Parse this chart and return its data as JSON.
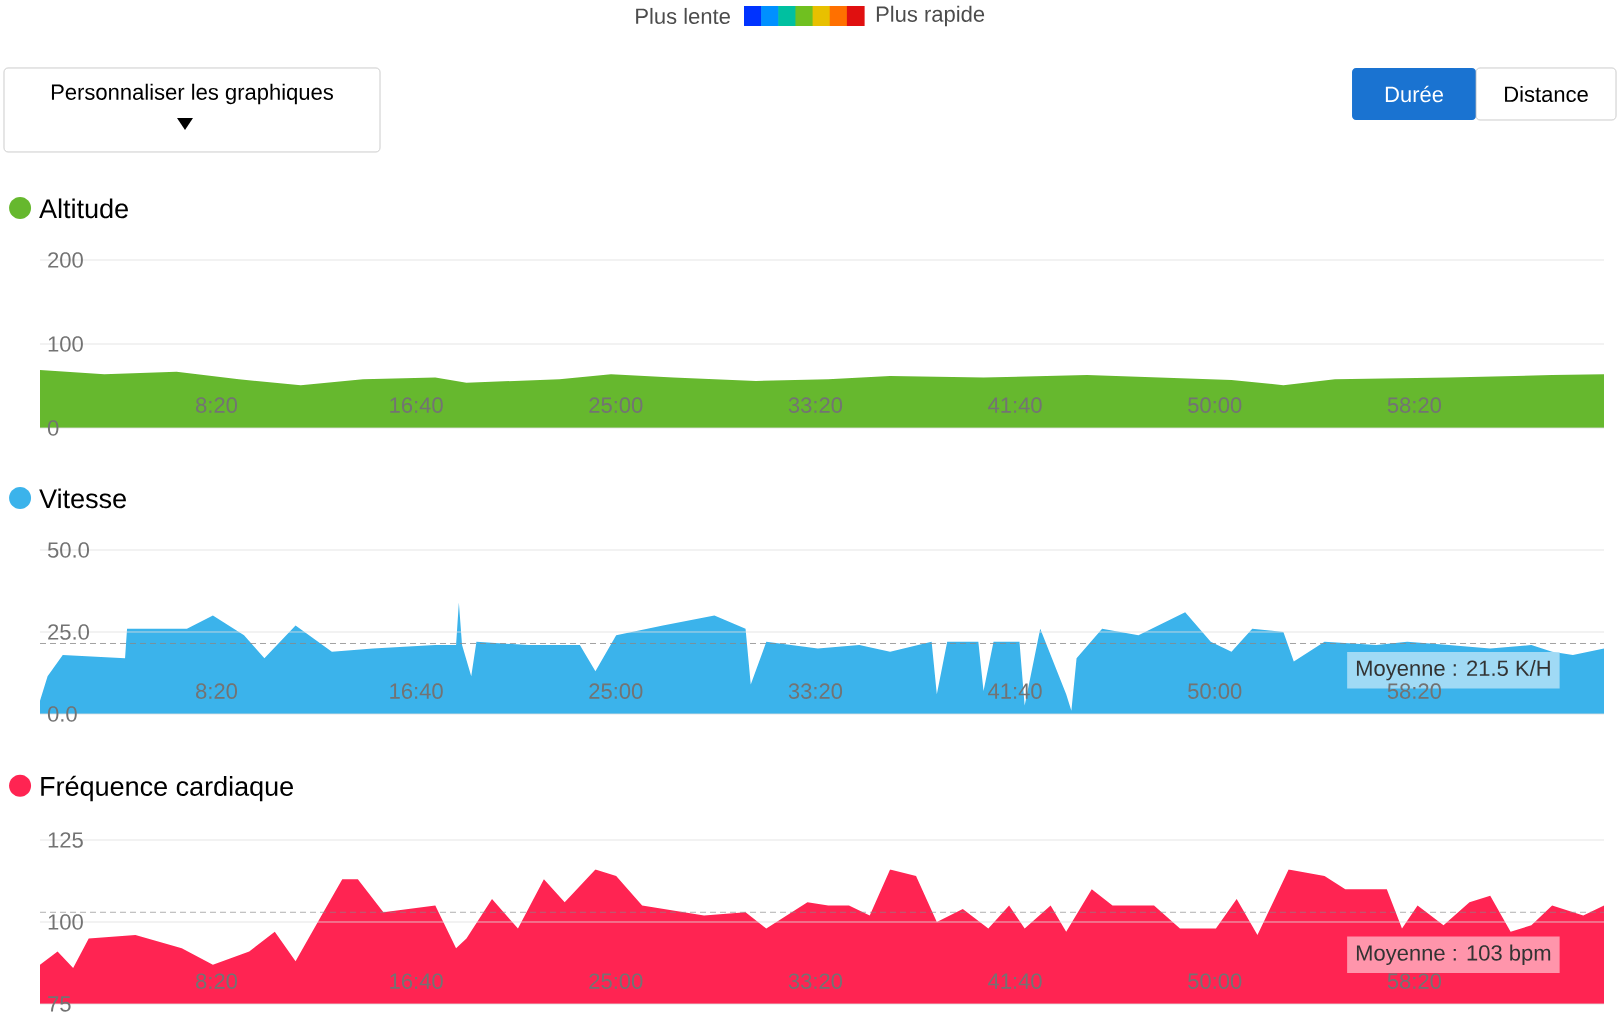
{
  "chart_data": [
    {
      "type": "area",
      "title": "Altitude",
      "annotations": [
        "Plus lente",
        "Plus rapide",
        "Personnaliser les graphiques",
        "Durée",
        "Distance"
      ],
      "x": [
        58,
        219,
        400,
        556,
        711,
        867,
        1048,
        1126,
        1359,
        1488,
        1644,
        1851,
        2032,
        2187,
        2421,
        2680,
        2861,
        3042,
        3172,
        3301,
        3586,
        3845,
        3975
      ],
      "xlim": [
        58,
        3975
      ],
      "xticks": [
        {
          "value": 500,
          "label": "8:20"
        },
        {
          "value": 1000,
          "label": "16:40"
        },
        {
          "value": 1500,
          "label": "25:00"
        },
        {
          "value": 2000,
          "label": "33:20"
        },
        {
          "value": 2500,
          "label": "41:40"
        },
        {
          "value": 3000,
          "label": "50:00"
        },
        {
          "value": 3500,
          "label": "58:20"
        }
      ],
      "ylim": [
        0,
        200
      ],
      "yticks": [
        0,
        100,
        200
      ],
      "grid": "y",
      "series": [
        {
          "color": "#66b82e",
          "values": [
            69,
            64,
            67,
            58,
            51,
            58,
            60,
            54,
            58,
            64,
            60,
            56,
            58,
            62,
            60,
            63,
            60,
            57,
            51,
            58,
            60,
            63,
            64
          ]
        }
      ]
    },
    {
      "type": "area",
      "title": "Vitesse",
      "x": [
        58,
        77,
        115,
        271,
        276,
        426,
        491,
        569,
        620,
        698,
        789,
        892,
        1048,
        1100,
        1107,
        1115,
        1138,
        1151,
        1281,
        1410,
        1449,
        1501,
        1618,
        1747,
        1825,
        1838,
        1877,
        2006,
        2110,
        2187,
        2291,
        2304,
        2330,
        2408,
        2421,
        2446,
        2511,
        2524,
        2563,
        2628,
        2641,
        2654,
        2718,
        2809,
        2926,
        2990,
        3042,
        3094,
        3172,
        3198,
        3275,
        3405,
        3482,
        3586,
        3690,
        3793,
        3845,
        3897,
        3975
      ],
      "xlim": [
        58,
        3975
      ],
      "xticks": [
        {
          "value": 500,
          "label": "8:20"
        },
        {
          "value": 1000,
          "label": "16:40"
        },
        {
          "value": 1500,
          "label": "25:00"
        },
        {
          "value": 2000,
          "label": "33:20"
        },
        {
          "value": 2500,
          "label": "41:40"
        },
        {
          "value": 3000,
          "label": "50:00"
        },
        {
          "value": 3500,
          "label": "58:20"
        }
      ],
      "ylim": [
        0,
        50
      ],
      "yticks": [
        {
          "value": 0,
          "label": "0.0"
        },
        {
          "value": 25,
          "label": "25.0"
        },
        {
          "value": 50,
          "label": "50.0"
        }
      ],
      "grid": "y",
      "ref_lines": [
        {
          "axis": "y",
          "value": 21.5,
          "label": "Moyenne : 21.5 K/H",
          "color": "#888888",
          "line_style": "dashed"
        }
      ],
      "series": [
        {
          "color": "#3bb3eb",
          "values": [
            4,
            11.5,
            18,
            17,
            26,
            26,
            30,
            24,
            17,
            27,
            19,
            20,
            21,
            21,
            34,
            21,
            11.5,
            22,
            21,
            21,
            13,
            24,
            27,
            30,
            26,
            9,
            22,
            20,
            21,
            19,
            22,
            6,
            22,
            22,
            7,
            22,
            22,
            2.6,
            26,
            6,
            1,
            17,
            26,
            24,
            31,
            22,
            19,
            26,
            25,
            16,
            22,
            21,
            22,
            21,
            20,
            21,
            19,
            18,
            20
          ]
        }
      ]
    },
    {
      "type": "area",
      "title": "Fréquence cardiaque",
      "x": [
        58,
        102,
        141,
        180,
        297,
        413,
        491,
        582,
        646,
        698,
        763,
        815,
        854,
        918,
        1048,
        1100,
        1126,
        1190,
        1255,
        1320,
        1372,
        1449,
        1501,
        1566,
        1721,
        1825,
        1877,
        1980,
        2032,
        2084,
        2136,
        2187,
        2252,
        2304,
        2369,
        2433,
        2485,
        2524,
        2589,
        2628,
        2692,
        2744,
        2848,
        2913,
        3003,
        3055,
        3107,
        3185,
        3275,
        3327,
        3431,
        3469,
        3508,
        3573,
        3638,
        3690,
        3741,
        3793,
        3845,
        3923,
        3975
      ],
      "xlim": [
        58,
        3975
      ],
      "xticks": [
        {
          "value": 500,
          "label": "8:20"
        },
        {
          "value": 1000,
          "label": "16:40"
        },
        {
          "value": 1500,
          "label": "25:00"
        },
        {
          "value": 2000,
          "label": "33:20"
        },
        {
          "value": 2500,
          "label": "41:40"
        },
        {
          "value": 3000,
          "label": "50:00"
        },
        {
          "value": 3500,
          "label": "58:20"
        }
      ],
      "ylim": [
        75,
        125
      ],
      "yticks": [
        75,
        100,
        125
      ],
      "grid": "y",
      "ref_lines": [
        {
          "axis": "y",
          "value": 103,
          "label": "Moyenne : 103 bpm",
          "color": "#888888",
          "line_style": "dashed"
        }
      ],
      "series": [
        {
          "color": "#ff2452",
          "values": [
            87,
            91,
            86,
            95,
            96,
            92,
            87,
            91,
            97,
            88,
            102,
            113,
            113,
            103,
            105,
            92,
            95,
            107,
            98,
            113,
            106,
            116,
            114,
            105,
            102,
            103,
            98,
            106,
            105,
            105,
            102,
            116,
            114,
            100,
            104,
            98,
            105,
            98,
            105,
            97,
            110,
            105,
            105,
            98,
            98,
            107,
            96,
            116,
            114,
            110,
            110,
            98,
            105,
            99,
            106,
            108,
            97,
            99,
            105,
            102,
            105
          ]
        }
      ]
    }
  ]
}
